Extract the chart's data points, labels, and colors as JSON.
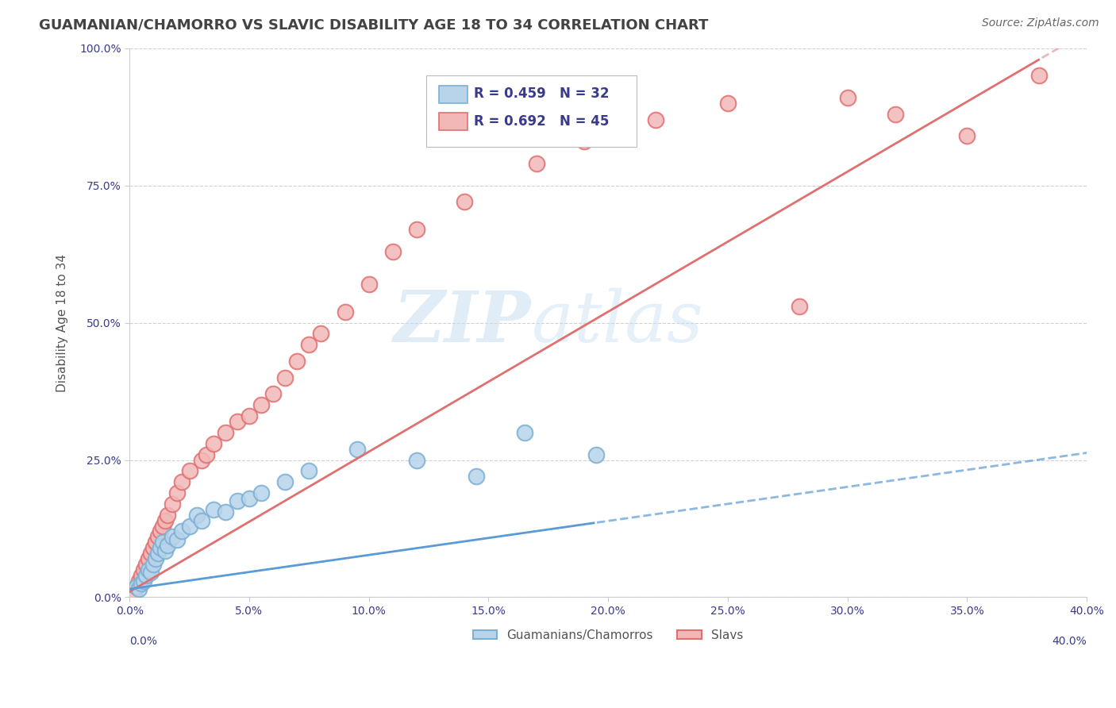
{
  "title": "GUAMANIAN/CHAMORRO VS SLAVIC DISABILITY AGE 18 TO 34 CORRELATION CHART",
  "source": "Source: ZipAtlas.com",
  "ylabel": "Disability Age 18 to 34",
  "xmin": 0.0,
  "xmax": 40.0,
  "ymin": 0.0,
  "ymax": 100.0,
  "yticks": [
    0.0,
    25.0,
    50.0,
    75.0,
    100.0
  ],
  "xticks": [
    0.0,
    5.0,
    10.0,
    15.0,
    20.0,
    25.0,
    30.0,
    35.0,
    40.0
  ],
  "blue_R": "0.459",
  "blue_N": "32",
  "pink_R": "0.692",
  "pink_N": "45",
  "blue_color": "#7bafd4",
  "blue_face": "#b8d4ea",
  "pink_color": "#e07070",
  "pink_face": "#f2b8b8",
  "blue_line_color": "#5b9bd5",
  "pink_line_color": "#e07070",
  "legend_text_color": "#3a3a8c",
  "legend_N_color": "#cc2222",
  "title_color": "#434343",
  "source_color": "#666666",
  "watermark_color": "#c8dff0",
  "background_color": "#ffffff",
  "grid_color": "#cccccc",
  "ylabel_color": "#555555",
  "blue_x": [
    0.3,
    0.4,
    0.5,
    0.6,
    0.7,
    0.8,
    0.9,
    1.0,
    1.1,
    1.2,
    1.3,
    1.4,
    1.5,
    1.6,
    1.8,
    2.0,
    2.2,
    2.5,
    2.8,
    3.0,
    3.5,
    4.0,
    4.5,
    5.0,
    5.5,
    6.5,
    7.5,
    9.5,
    12.0,
    14.5,
    16.5,
    19.5
  ],
  "blue_y": [
    2.0,
    1.5,
    2.5,
    3.0,
    4.0,
    5.0,
    4.5,
    6.0,
    7.0,
    8.0,
    9.0,
    10.0,
    8.5,
    9.5,
    11.0,
    10.5,
    12.0,
    13.0,
    15.0,
    14.0,
    16.0,
    15.5,
    17.5,
    18.0,
    19.0,
    21.0,
    23.0,
    27.0,
    25.0,
    22.0,
    30.0,
    26.0
  ],
  "pink_x": [
    0.2,
    0.3,
    0.4,
    0.5,
    0.6,
    0.7,
    0.8,
    0.9,
    1.0,
    1.1,
    1.2,
    1.3,
    1.4,
    1.5,
    1.6,
    1.8,
    2.0,
    2.2,
    2.5,
    3.0,
    3.2,
    3.5,
    4.0,
    4.5,
    5.0,
    5.5,
    6.0,
    6.5,
    7.0,
    7.5,
    8.0,
    9.0,
    10.0,
    11.0,
    12.0,
    14.0,
    17.0,
    19.0,
    22.0,
    25.0,
    28.0,
    30.0,
    32.0,
    35.0,
    38.0
  ],
  "pink_y": [
    1.0,
    2.0,
    3.0,
    4.0,
    5.0,
    6.0,
    7.0,
    8.0,
    9.0,
    10.0,
    11.0,
    12.0,
    13.0,
    14.0,
    15.0,
    17.0,
    19.0,
    21.0,
    23.0,
    25.0,
    26.0,
    28.0,
    30.0,
    32.0,
    33.0,
    35.0,
    37.0,
    40.0,
    43.0,
    46.0,
    48.0,
    52.0,
    57.0,
    63.0,
    67.0,
    72.0,
    79.0,
    83.0,
    87.0,
    90.0,
    53.0,
    91.0,
    88.0,
    84.0,
    95.0
  ]
}
